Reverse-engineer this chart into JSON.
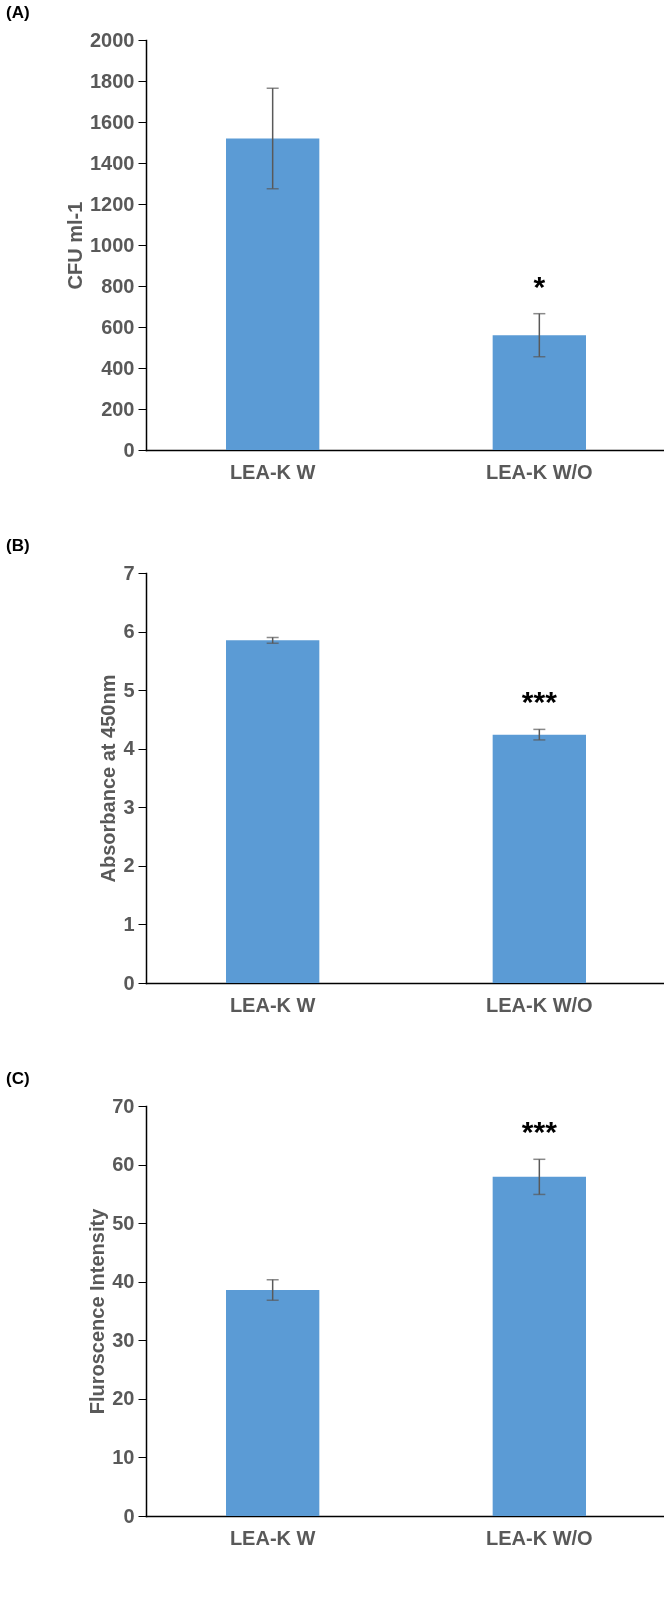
{
  "chart_data": [
    {
      "type": "bar",
      "title": "(A)",
      "ylabel": "CFU ml-1",
      "categories": [
        "LEA-K W",
        "LEA-K W/O"
      ],
      "values": [
        1520,
        560
      ],
      "errors": [
        245,
        105
      ],
      "color": "#5b9bd5",
      "ylim": [
        0,
        2000
      ],
      "yticks": [
        0,
        200,
        400,
        600,
        800,
        1000,
        1200,
        1400,
        1600,
        1800,
        2000
      ],
      "annotations": [
        "*"
      ]
    },
    {
      "type": "bar",
      "title": "(B)",
      "ylabel": "Absorbance at 450nm",
      "categories": [
        "LEA-K W",
        "LEA-K W/O"
      ],
      "values": [
        5.85,
        4.24
      ],
      "errors": [
        0.05,
        0.09
      ],
      "color": "#5b9bd5",
      "ylim": [
        0,
        7
      ],
      "yticks": [
        0,
        1,
        2,
        3,
        4,
        5,
        6,
        7
      ],
      "annotations": [
        "***"
      ]
    },
    {
      "type": "bar",
      "title": "(C)",
      "ylabel": "Fluroscence Intensity",
      "categories": [
        "LEA-K W",
        "LEA-K W/O"
      ],
      "values": [
        38.6,
        57.9
      ],
      "errors": [
        1.75,
        3
      ],
      "color": "#5b9bd5",
      "ylim": [
        0,
        70
      ],
      "yticks": [
        0,
        10,
        20,
        30,
        40,
        50,
        60,
        70
      ],
      "annotations": [
        "***"
      ]
    }
  ]
}
